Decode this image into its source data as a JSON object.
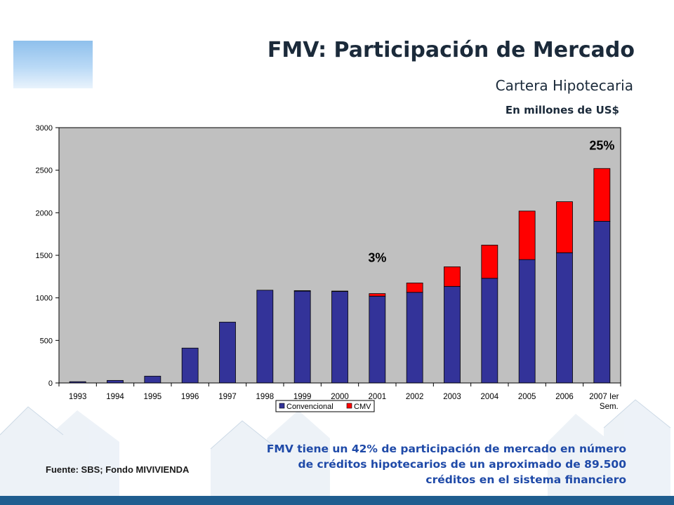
{
  "header": {
    "title": "FMV: Participación de Mercado",
    "subtitle": "Cartera Hipotecaria",
    "units": "En millones de  US$"
  },
  "footer": {
    "source": "Fuente: SBS; Fondo MIVIVIENDA",
    "note": "FMV tiene un 42% de participación de mercado en número de créditos hipotecarios de un aproximado de 89.500 créditos en el sistema financiero"
  },
  "colors": {
    "convencional": "#333399",
    "cmv": "#ff0000",
    "plot_bg": "#c0c0c0",
    "footer_bar": "#1f5d8f"
  },
  "chart_data": {
    "type": "bar",
    "stacked": true,
    "categories": [
      "1993",
      "1994",
      "1995",
      "1996",
      "1997",
      "1998",
      "1999",
      "2000",
      "2001",
      "2002",
      "2003",
      "2004",
      "2005",
      "2006",
      "2007 Ier Sem."
    ],
    "series": [
      {
        "name": "Convencional",
        "color": "#333399",
        "values": [
          15,
          30,
          80,
          410,
          715,
          1090,
          1080,
          1075,
          1020,
          1065,
          1135,
          1230,
          1450,
          1530,
          1900
        ]
      },
      {
        "name": "CMV",
        "color": "#ff0000",
        "values": [
          0,
          0,
          0,
          0,
          0,
          0,
          5,
          5,
          30,
          110,
          230,
          390,
          570,
          600,
          620
        ]
      }
    ],
    "ylim": [
      0,
      3000
    ],
    "yticks": [
      0,
      500,
      1000,
      1500,
      2000,
      2500,
      3000
    ],
    "grid": false,
    "legend_position": "bottom",
    "annotations": [
      {
        "text": "3%",
        "category": "2001",
        "y": 1420
      },
      {
        "text": "25%",
        "category": "2007 Ier Sem.",
        "y": 2740
      }
    ]
  }
}
